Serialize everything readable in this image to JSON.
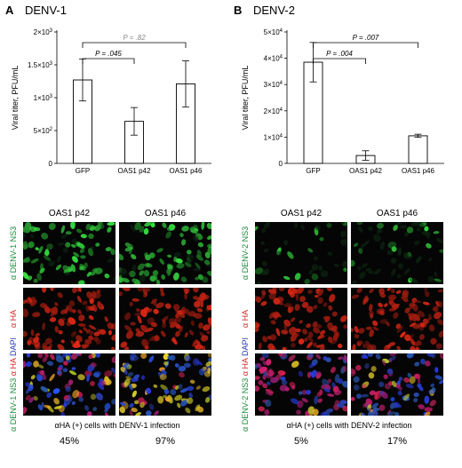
{
  "panels": [
    {
      "letter": "A",
      "title": "DENV-1",
      "chart_data": {
        "type": "bar",
        "ylabel": "Viral titer, PFU/mL",
        "categories": [
          "GFP",
          "OAS1 p42",
          "OAS1 p46"
        ],
        "values": [
          1270,
          640,
          1210
        ],
        "errors": [
          320,
          210,
          350
        ],
        "ylim": [
          0,
          2000
        ],
        "yticks": [
          0,
          500,
          1000,
          1500,
          2000
        ],
        "ytick_labels": [
          {
            "base": "0",
            "exp": ""
          },
          {
            "base": "5×10",
            "exp": "2"
          },
          {
            "base": "1×10",
            "exp": "3"
          },
          {
            "base": "1.5×10",
            "exp": "3"
          },
          {
            "base": "2×10",
            "exp": "3"
          }
        ],
        "comparisons": [
          {
            "from": 0,
            "to": 2,
            "label": "P = .82",
            "color": "#888888"
          },
          {
            "from": 0,
            "to": 1,
            "label": "P = .045",
            "color": "#000000"
          }
        ]
      },
      "columns": [
        "OAS1 p42",
        "OAS1 p46"
      ],
      "rows": [
        {
          "parts": [
            {
              "text": "α DENV-1 NS3",
              "color": "#1a8a3a"
            }
          ]
        },
        {
          "parts": [
            {
              "text": "α HA",
              "color": "#d42a2a"
            }
          ]
        },
        {
          "parts": [
            {
              "text": "α DENV-1 NS3",
              "color": "#1a8a3a"
            },
            {
              "text": " α HA",
              "color": "#d42a2a"
            },
            {
              "text": " DAPI",
              "color": "#2a3ab0"
            }
          ]
        }
      ],
      "footnote": "αHA (+) cells with DENV-1 infection",
      "percents": [
        "45%",
        "97%"
      ],
      "images": [
        [
          {
            "kind": "green",
            "intensity": 0.7
          },
          {
            "kind": "green",
            "intensity": 0.8
          }
        ],
        [
          {
            "kind": "red",
            "intensity": 0.8
          },
          {
            "kind": "red",
            "intensity": 0.8
          }
        ],
        [
          {
            "kind": "merge",
            "intensity": 0.45
          },
          {
            "kind": "merge",
            "intensity": 0.97
          }
        ]
      ]
    },
    {
      "letter": "B",
      "title": "DENV-2",
      "chart_data": {
        "type": "bar",
        "ylabel": "Viral titer, PFU/mL",
        "categories": [
          "GFP",
          "OAS1 p42",
          "OAS1 p46"
        ],
        "values": [
          38500,
          3000,
          10500
        ],
        "errors": [
          7500,
          1800,
          600
        ],
        "ylim": [
          0,
          50000
        ],
        "yticks": [
          0,
          10000,
          20000,
          30000,
          40000,
          50000
        ],
        "ytick_labels": [
          {
            "base": "0",
            "exp": ""
          },
          {
            "base": "1×10",
            "exp": "4"
          },
          {
            "base": "2×10",
            "exp": "4"
          },
          {
            "base": "3×10",
            "exp": "4"
          },
          {
            "base": "4×10",
            "exp": "4"
          },
          {
            "base": "5×10",
            "exp": "4"
          }
        ],
        "comparisons": [
          {
            "from": 0,
            "to": 2,
            "label": "P = .007",
            "color": "#000000"
          },
          {
            "from": 0,
            "to": 1,
            "label": "P = .004",
            "color": "#000000"
          }
        ]
      },
      "columns": [
        "OAS1 p42",
        "OAS1 p46"
      ],
      "rows": [
        {
          "parts": [
            {
              "text": "α DENV-2 NS3",
              "color": "#1a8a3a"
            }
          ]
        },
        {
          "parts": [
            {
              "text": "α HA",
              "color": "#d42a2a"
            }
          ]
        },
        {
          "parts": [
            {
              "text": "α DENV-2 NS3",
              "color": "#1a8a3a"
            },
            {
              "text": " α HA",
              "color": "#d42a2a"
            },
            {
              "text": " DAPI",
              "color": "#2a3ab0"
            }
          ]
        }
      ],
      "footnote": "αHA (+) cells with DENV-2 infection",
      "percents": [
        "5%",
        "17%"
      ],
      "images": [
        [
          {
            "kind": "green",
            "intensity": 0.12
          },
          {
            "kind": "green",
            "intensity": 0.25
          }
        ],
        [
          {
            "kind": "red",
            "intensity": 0.8
          },
          {
            "kind": "red",
            "intensity": 0.8
          }
        ],
        [
          {
            "kind": "merge",
            "intensity": 0.05
          },
          {
            "kind": "merge",
            "intensity": 0.17
          }
        ]
      ]
    }
  ]
}
